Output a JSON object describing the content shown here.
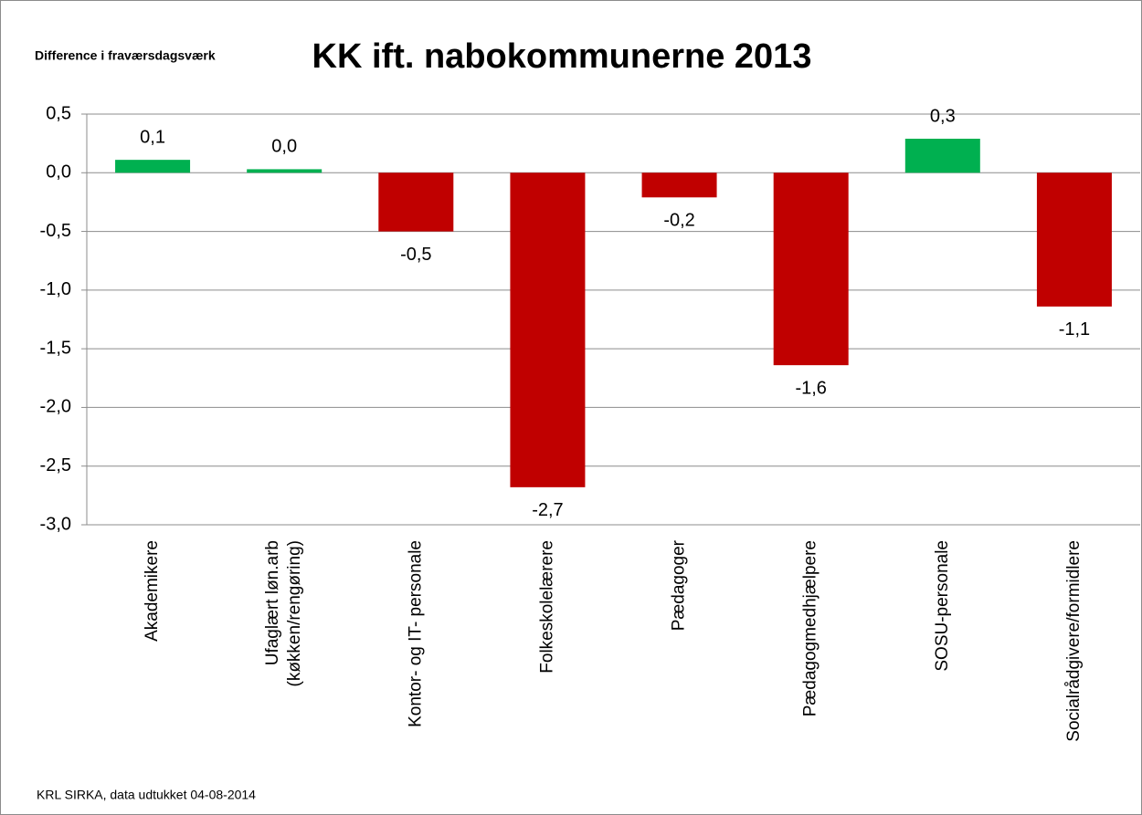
{
  "chart_data": {
    "type": "bar",
    "title": "KK ift. nabokommunerne 2013",
    "subtitle": "Difference i fraværsdagsværk",
    "footnote": "KRL SIRKA, data udtukket 04-08-2014",
    "categories": [
      "Akademikere",
      "Ufaglært løn.arb\n(køkken/rengøring)",
      "Kontor- og IT- personale",
      "Folkeskolelærere",
      "Pædagoger",
      "Pædagogmedhjælpere",
      "SOSU-personale",
      "Socialrådgivere/formidlere"
    ],
    "values": [
      0.11,
      0.03,
      -0.5,
      -2.68,
      -0.21,
      -1.64,
      0.29,
      -1.14
    ],
    "value_labels": [
      "0,1",
      "0,0",
      "-0,5",
      "-2,7",
      "-0,2",
      "-1,6",
      "0,3",
      "-1,1"
    ],
    "colors": [
      "#00b050",
      "#00b050",
      "#c00000",
      "#c00000",
      "#c00000",
      "#c00000",
      "#00b050",
      "#c00000"
    ],
    "ylim": [
      -3.0,
      0.5
    ],
    "yticks": [
      {
        "value": 0.5,
        "label": "0,5"
      },
      {
        "value": 0.0,
        "label": "0,0"
      },
      {
        "value": -0.5,
        "label": "-0,5"
      },
      {
        "value": -1.0,
        "label": "-1,0"
      },
      {
        "value": -1.5,
        "label": "-1,5"
      },
      {
        "value": -2.0,
        "label": "-2,0"
      },
      {
        "value": -2.5,
        "label": "-2,5"
      },
      {
        "value": -3.0,
        "label": "-3,0"
      }
    ],
    "grid": true
  }
}
